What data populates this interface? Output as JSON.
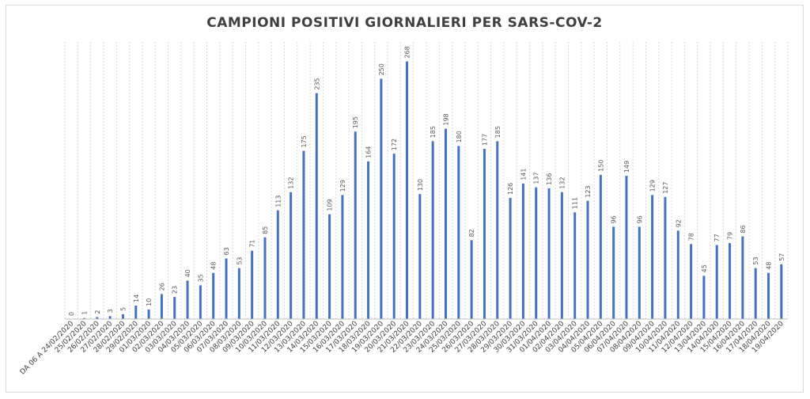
{
  "chart_data": {
    "type": "bar",
    "title": "CAMPIONI POSITIVI GIORNALIERI PER SARS-COV-2",
    "xlabel": "",
    "ylabel": "",
    "ylim": [
      0,
      280
    ],
    "grid": true,
    "categories": [
      "DA 06 A 24/02/2020",
      "25/02/2020",
      "26/02/2020",
      "27/02/2020",
      "28/02/2020",
      "29/02/2020",
      "01/03/2020",
      "02/03/2020",
      "03/03/2020",
      "04/03/2020",
      "05/03/2020",
      "06/03/2020",
      "07/03/2020",
      "08/03/2020",
      "09/03/2020",
      "10/03/2020",
      "11/03/2020",
      "12/03/2020",
      "13/03/2020",
      "14/03/2020",
      "15/03/2020",
      "16/03/2020",
      "17/03/2020",
      "18/03/2020",
      "19/03/2020",
      "20/03/2020",
      "21/03/2020",
      "22/03/2020",
      "23/03/2020",
      "24/03/2020",
      "25/03/2020",
      "26/03/2020",
      "27/03/2020",
      "28/03/2020",
      "29/03/2020",
      "30/03/2020",
      "31/03/2020",
      "01/04/2020",
      "02/04/2020",
      "03/04/2020",
      "04/04/2020",
      "05/04/2020",
      "06/04/2020",
      "07/04/2020",
      "08/04/2020",
      "09/04/2020",
      "10/04/2020",
      "11/04/2020",
      "12/04/2020",
      "13/04/2020",
      "14/04/2020",
      "15/04/2020",
      "16/04/2020",
      "17/04/2020",
      "18/04/2020",
      "19/04/2020"
    ],
    "values": [
      0,
      1,
      2,
      3,
      5,
      14,
      10,
      26,
      23,
      40,
      35,
      48,
      63,
      53,
      71,
      85,
      113,
      132,
      175,
      235,
      109,
      129,
      195,
      164,
      250,
      172,
      268,
      130,
      185,
      198,
      180,
      82,
      177,
      185,
      126,
      141,
      137,
      136,
      132,
      111,
      123,
      150,
      96,
      149,
      96,
      129,
      127,
      92,
      78,
      45,
      77,
      79,
      86,
      53,
      48,
      57
    ],
    "colors": {
      "bar": "#4472c4"
    }
  }
}
